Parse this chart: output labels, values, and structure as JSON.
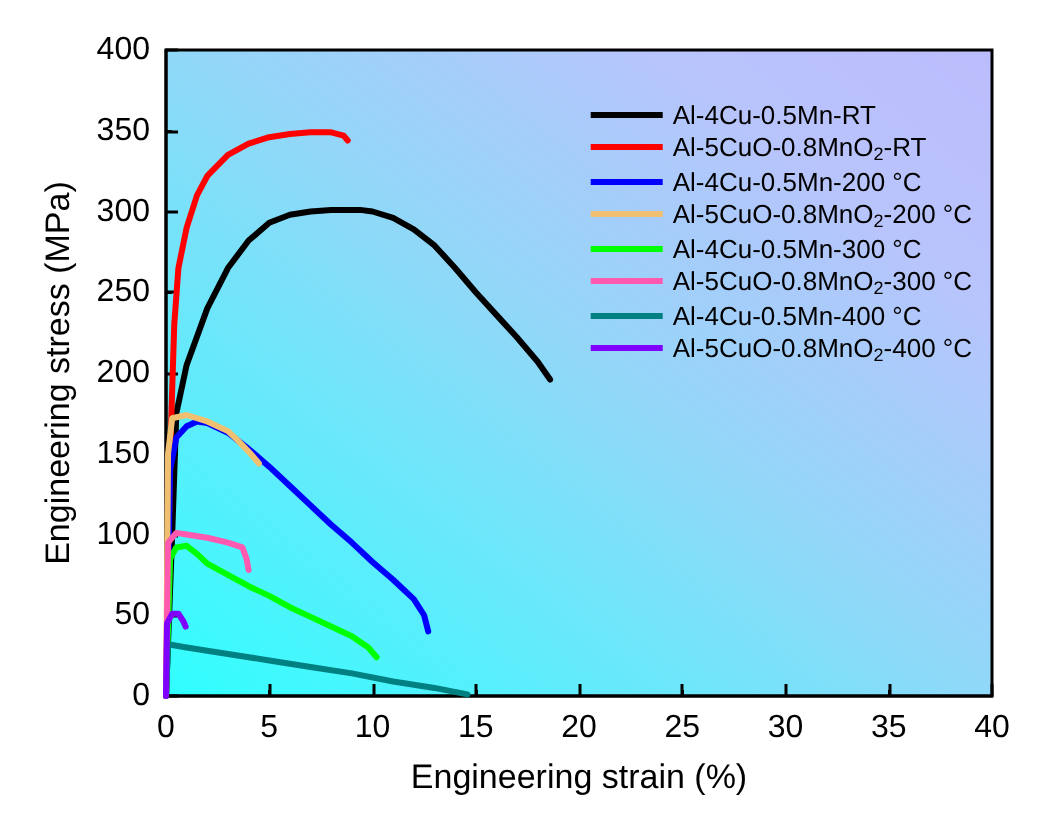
{
  "chart_data": {
    "type": "line",
    "xlabel": "Engineering strain (%)",
    "ylabel": "Engineering stress (MPa)",
    "xlim": [
      0,
      40
    ],
    "xticks": [
      0,
      5,
      10,
      15,
      20,
      25,
      30,
      35,
      40
    ],
    "ylim": [
      0,
      400
    ],
    "yticks": [
      0,
      50,
      100,
      150,
      200,
      250,
      300,
      350,
      400
    ],
    "grid": false,
    "legend": "top right",
    "marker": "none",
    "line_style": "solid",
    "series": [
      {
        "name": "Al-4Cu-0.5Mn-RT",
        "color": "#000000",
        "x": [
          0,
          0.3,
          0.5,
          1,
          2,
          3,
          4,
          5,
          6,
          7,
          8,
          9,
          9.4,
          10,
          11,
          12,
          13,
          14,
          15,
          16,
          17,
          18,
          18.6
        ],
        "values": [
          0,
          100,
          175,
          205,
          240,
          265,
          282,
          293,
          298,
          300,
          301,
          301,
          301,
          300,
          296,
          289,
          279,
          265,
          250,
          236,
          222,
          207,
          196
        ]
      },
      {
        "name": "Al-5CuO-0.8MnO$_{2}$-RT",
        "color": "#ff0000",
        "x": [
          0,
          0.2,
          0.4,
          0.6,
          1,
          1.5,
          2,
          3,
          4,
          5,
          6,
          7,
          8,
          8.6,
          8.8
        ],
        "values": [
          0,
          150,
          230,
          265,
          290,
          310,
          322,
          335,
          342,
          346,
          348,
          349,
          349,
          347,
          344
        ]
      },
      {
        "name": "Al-4Cu-0.5Mn-200 °C",
        "color": "#0000ff",
        "x": [
          0,
          0.2,
          0.5,
          1,
          1.5,
          2,
          3,
          4,
          5,
          6,
          7,
          8,
          9,
          10,
          11,
          12,
          12.5,
          12.7
        ],
        "values": [
          0,
          140,
          160,
          167,
          170,
          169,
          163,
          153,
          142,
          130,
          118,
          106,
          95,
          83,
          72,
          60,
          50,
          40
        ]
      },
      {
        "name": "Al-5CuO-0.8MnO$_{2}$-200 °C",
        "color": "#f0c070",
        "x": [
          0,
          0.1,
          0.3,
          1,
          2,
          3,
          3.5,
          4.1,
          4.5
        ],
        "values": [
          0,
          150,
          172,
          174,
          170,
          164,
          158,
          150,
          144
        ]
      },
      {
        "name": "Al-4Cu-0.5Mn-300 °C",
        "color": "#00ff00",
        "x": [
          0,
          0.2,
          0.5,
          1,
          1.5,
          2,
          3,
          4,
          5,
          6,
          7,
          8,
          9,
          9.8,
          10.2
        ],
        "values": [
          0,
          85,
          92,
          93,
          88,
          82,
          75,
          68,
          62,
          55,
          49,
          43,
          37,
          30,
          24
        ]
      },
      {
        "name": "Al-5CuO-0.8MnO$_{2}$-300 °C",
        "color": "#ff5ab0",
        "x": [
          0,
          0.1,
          0.5,
          1,
          2,
          3,
          3.7,
          3.9,
          4.0
        ],
        "values": [
          0,
          95,
          101,
          100,
          98,
          95,
          92,
          85,
          78
        ]
      },
      {
        "name": "Al-4Cu-0.5Mn-400 °C",
        "color": "#008080",
        "x": [
          0,
          0.1,
          1,
          3,
          5,
          7,
          9,
          11,
          13,
          14.6
        ],
        "values": [
          0,
          32,
          30,
          26,
          22,
          18,
          14,
          9,
          5,
          1
        ]
      },
      {
        "name": "Al-5CuO-0.8MnO$_{2}$-400 °C",
        "color": "#8000ff",
        "x": [
          0,
          0.05,
          0.3,
          0.6,
          0.85,
          0.95
        ],
        "values": [
          0,
          45,
          51,
          51,
          46,
          43
        ]
      }
    ]
  }
}
